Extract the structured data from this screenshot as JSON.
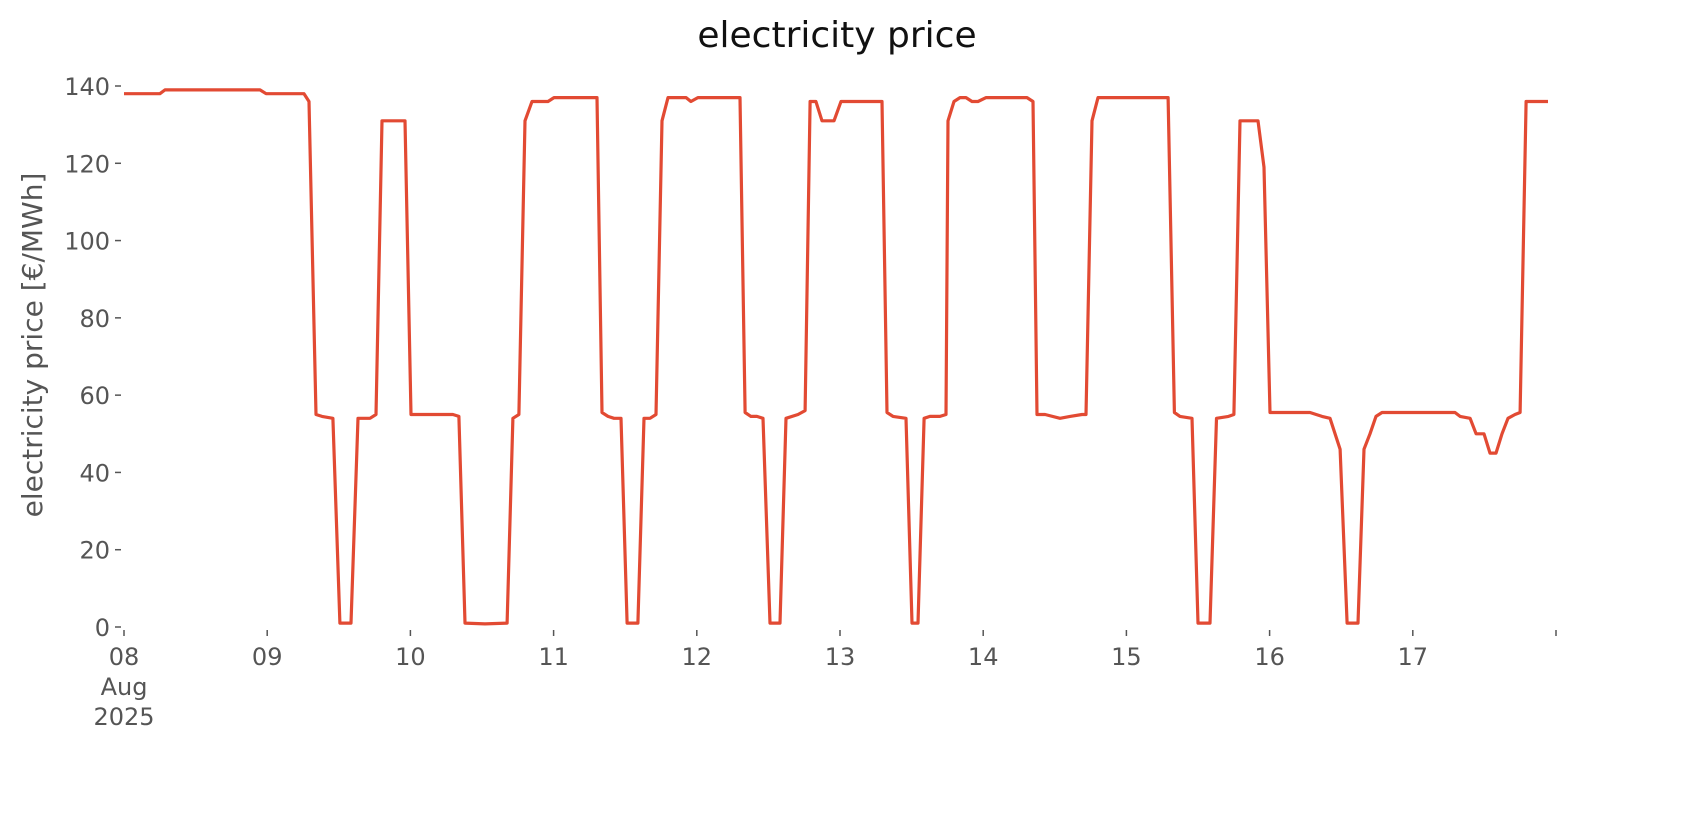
{
  "chart_data": {
    "type": "line",
    "title": "electricity price",
    "y_label": "electricity price [€/MWh]",
    "x": [
      8.0,
      8.251,
      8.286,
      8.95,
      8.992,
      9.257,
      9.292,
      9.341,
      9.383,
      9.459,
      9.508,
      9.585,
      9.634,
      9.718,
      9.76,
      9.802,
      9.962,
      10.004,
      10.297,
      10.339,
      10.381,
      10.521,
      10.675,
      10.716,
      10.758,
      10.8,
      10.849,
      10.961,
      11.003,
      11.303,
      11.338,
      11.38,
      11.422,
      11.471,
      11.513,
      11.589,
      11.631,
      11.673,
      11.715,
      11.757,
      11.799,
      11.925,
      11.959,
      12.008,
      12.302,
      12.337,
      12.378,
      12.42,
      12.462,
      12.511,
      12.581,
      12.623,
      12.707,
      12.756,
      12.791,
      12.832,
      12.874,
      12.958,
      13.007,
      13.293,
      13.328,
      13.37,
      13.461,
      13.503,
      13.545,
      13.587,
      13.628,
      13.698,
      13.74,
      13.754,
      13.796,
      13.838,
      13.88,
      13.922,
      13.964,
      14.02,
      14.306,
      14.348,
      14.376,
      14.432,
      14.536,
      14.606,
      14.69,
      14.718,
      14.76,
      14.802,
      15.291,
      15.335,
      15.374,
      15.458,
      15.5,
      15.584,
      15.629,
      15.713,
      15.751,
      15.793,
      15.919,
      15.961,
      16.003,
      16.282,
      16.366,
      16.422,
      16.492,
      16.541,
      16.617,
      16.659,
      16.701,
      16.743,
      16.785,
      16.841,
      17.295,
      17.33,
      17.4,
      17.442,
      17.497,
      17.539,
      17.581,
      17.623,
      17.665,
      17.714,
      17.749,
      17.791,
      17.944
    ],
    "series": [
      {
        "name": "electricity price",
        "color": "#e24a33",
        "values": [
          138,
          138,
          139,
          139,
          138,
          138,
          136,
          55,
          54.5,
          54,
          1,
          1,
          54,
          54,
          55,
          131,
          131,
          55,
          55,
          54.5,
          1,
          0.8,
          1,
          54,
          55,
          131,
          136,
          136,
          137,
          137,
          55.5,
          54.5,
          54,
          54,
          1,
          1,
          54,
          54,
          55,
          131,
          137,
          137,
          136,
          137,
          137,
          55.5,
          54.5,
          54.5,
          54,
          1,
          1,
          54,
          55,
          56,
          136,
          136,
          131,
          131,
          136,
          136,
          55.5,
          54.5,
          54,
          1,
          1,
          54,
          54.5,
          54.5,
          55,
          131,
          136,
          137,
          137,
          136,
          136,
          137,
          137,
          136,
          55,
          55,
          54,
          54.5,
          55,
          55,
          131,
          137,
          137,
          55.5,
          54.5,
          54,
          1,
          1,
          54,
          54.5,
          55,
          131,
          131,
          119,
          55.5,
          55.5,
          54.5,
          54,
          46,
          1,
          1,
          46,
          50,
          54.5,
          55.5,
          55.5,
          55.5,
          54.5,
          54,
          50,
          50,
          45,
          45,
          50,
          54,
          55,
          55.5,
          136,
          136
        ]
      }
    ],
    "xlim": [
      8,
      18
    ],
    "ylim": [
      0,
      140
    ],
    "xticks": [
      {
        "value": 8,
        "label": "08\nAug\n2025"
      },
      {
        "value": 9,
        "label": "09"
      },
      {
        "value": 10,
        "label": "10"
      },
      {
        "value": 11,
        "label": "11"
      },
      {
        "value": 12,
        "label": "12"
      },
      {
        "value": 13,
        "label": "13"
      },
      {
        "value": 14,
        "label": "14"
      },
      {
        "value": 15,
        "label": "15"
      },
      {
        "value": 16,
        "label": "16"
      },
      {
        "value": 17,
        "label": "17"
      },
      {
        "value": 18,
        "label": null
      }
    ],
    "yticks": [
      0,
      20,
      40,
      60,
      80,
      100,
      120,
      140
    ],
    "grid": false
  }
}
